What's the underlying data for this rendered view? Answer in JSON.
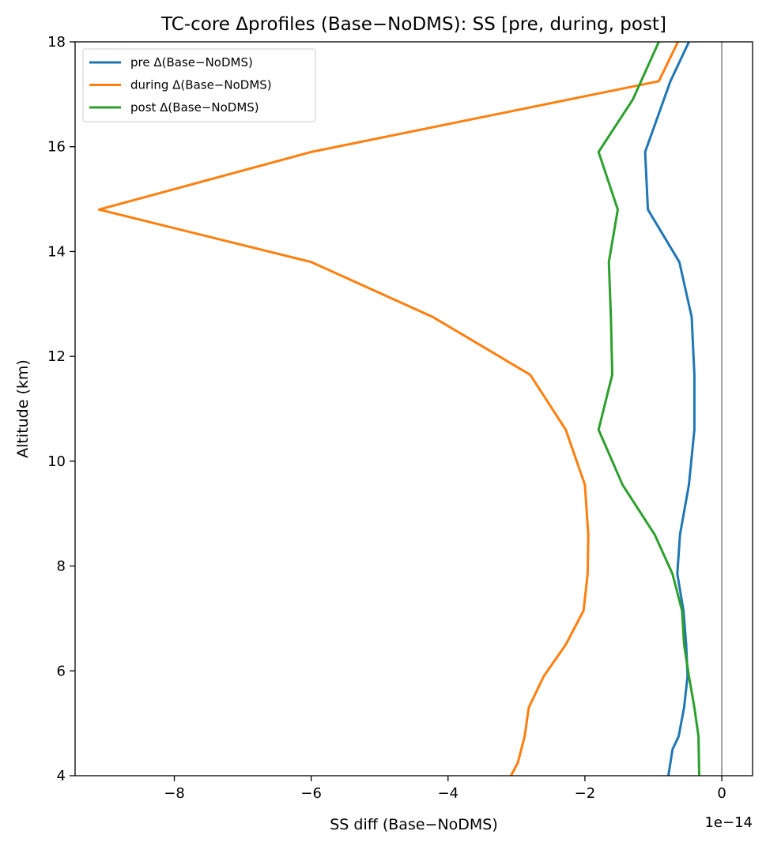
{
  "chart_data": {
    "type": "line",
    "title": "TC-core Δprofiles (Base−NoDMS): SS [pre, during, post]",
    "xlabel": "SS diff (Base−NoDMS)",
    "ylabel": "Altitude (km)",
    "x_offset_label": "1e−14",
    "xlim": [
      -9.45,
      0.45
    ],
    "ylim": [
      4,
      18
    ],
    "x_ticks": [
      -8,
      -6,
      -4,
      -2,
      0
    ],
    "x_tick_labels": [
      "−8",
      "−6",
      "−4",
      "−2",
      "0"
    ],
    "y_ticks": [
      4,
      6,
      8,
      10,
      12,
      14,
      16,
      18
    ],
    "y_tick_labels": [
      "4",
      "6",
      "8",
      "10",
      "12",
      "14",
      "16",
      "18"
    ],
    "zero_reference_line": 0,
    "grid": false,
    "legend_position": "top-left",
    "series": [
      {
        "name": "pre Δ(Base−NoDMS)",
        "color": "#1f77b4",
        "points": [
          [
            -0.78,
            4.0
          ],
          [
            -0.72,
            4.5
          ],
          [
            -0.63,
            4.75
          ],
          [
            -0.55,
            5.3
          ],
          [
            -0.5,
            5.9
          ],
          [
            -0.52,
            6.5
          ],
          [
            -0.56,
            7.15
          ],
          [
            -0.65,
            7.85
          ],
          [
            -0.61,
            8.6
          ],
          [
            -0.48,
            9.55
          ],
          [
            -0.4,
            10.6
          ],
          [
            -0.4,
            11.65
          ],
          [
            -0.44,
            12.75
          ],
          [
            -0.62,
            13.8
          ],
          [
            -1.08,
            14.8
          ],
          [
            -1.12,
            15.9
          ],
          [
            -0.75,
            17.25
          ],
          [
            -0.48,
            18.0
          ]
        ]
      },
      {
        "name": "during Δ(Base−NoDMS)",
        "color": "#ff7f0e",
        "points": [
          [
            -3.08,
            4.0
          ],
          [
            -2.98,
            4.25
          ],
          [
            -2.88,
            4.75
          ],
          [
            -2.82,
            5.3
          ],
          [
            -2.6,
            5.9
          ],
          [
            -2.28,
            6.5
          ],
          [
            -2.02,
            7.15
          ],
          [
            -1.96,
            7.85
          ],
          [
            -1.95,
            8.6
          ],
          [
            -2.0,
            9.55
          ],
          [
            -2.28,
            10.6
          ],
          [
            -2.8,
            11.65
          ],
          [
            -4.22,
            12.75
          ],
          [
            -6.0,
            13.8
          ],
          [
            -9.1,
            14.8
          ],
          [
            -6.0,
            15.9
          ],
          [
            -0.92,
            17.25
          ],
          [
            -0.64,
            18.0
          ]
        ]
      },
      {
        "name": "post Δ(Base−NoDMS)",
        "color": "#2ca02c",
        "points": [
          [
            -0.33,
            4.0
          ],
          [
            -0.34,
            4.75
          ],
          [
            -0.4,
            5.3
          ],
          [
            -0.48,
            5.9
          ],
          [
            -0.55,
            6.5
          ],
          [
            -0.58,
            7.15
          ],
          [
            -0.72,
            7.85
          ],
          [
            -0.98,
            8.6
          ],
          [
            -1.45,
            9.55
          ],
          [
            -1.8,
            10.6
          ],
          [
            -1.6,
            11.65
          ],
          [
            -1.62,
            12.75
          ],
          [
            -1.65,
            13.8
          ],
          [
            -1.52,
            14.8
          ],
          [
            -1.8,
            15.9
          ],
          [
            -1.3,
            16.9
          ],
          [
            -0.92,
            18.0
          ]
        ]
      }
    ]
  }
}
